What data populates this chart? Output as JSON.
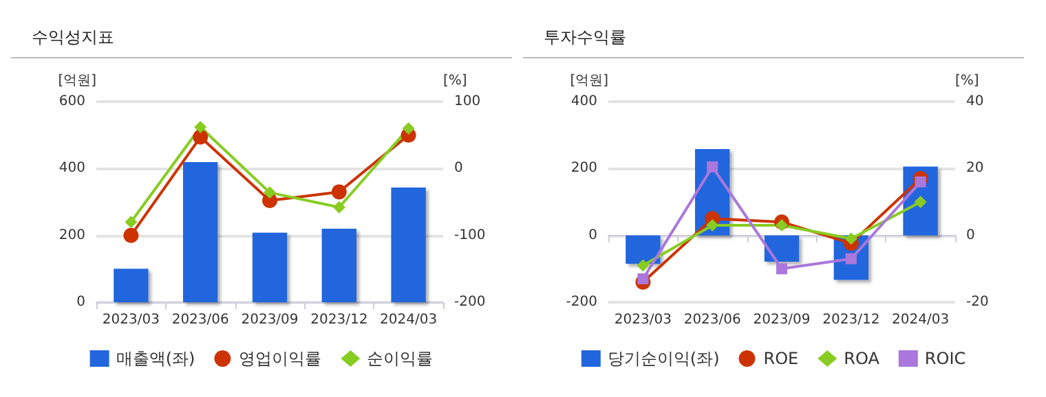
{
  "chart_data": [
    {
      "type": "bar",
      "title": "수익성지표",
      "ylabel": "[억원]",
      "y2label": "[%]",
      "categories": [
        "2023/03",
        "2023/06",
        "2023/09",
        "2023/12",
        "2024/03"
      ],
      "ylim": [
        0,
        600
      ],
      "yticks": [
        0,
        200,
        400,
        600
      ],
      "y2lim": [
        -200,
        100
      ],
      "y2ticks": [
        -200,
        -100,
        0,
        100
      ],
      "grid": "y",
      "legend": "bottom",
      "series": [
        {
          "name": "매출액(좌)",
          "color": "#2266dd",
          "values": [
            100,
            419,
            208,
            220,
            343
          ]
        },
        {
          "name": "영업이익률",
          "type": "line",
          "axis": "y2",
          "marker": "circle",
          "color": "#cc3300",
          "values": [
            -100,
            47,
            -48,
            -35,
            50
          ]
        },
        {
          "name": "순이익률",
          "type": "line",
          "axis": "y2",
          "marker": "diamond",
          "color": "#88cc22",
          "values": [
            -80,
            62,
            -36,
            -58,
            60
          ]
        }
      ]
    },
    {
      "type": "bar",
      "title": "투자수익률",
      "ylabel": "[억원]",
      "y2label": "[%]",
      "categories": [
        "2023/03",
        "2023/06",
        "2023/09",
        "2023/12",
        "2024/03"
      ],
      "ylim": [
        -200,
        400
      ],
      "yticks": [
        -200,
        0,
        200,
        400
      ],
      "y2lim": [
        -20,
        40
      ],
      "y2ticks": [
        -20,
        0,
        20,
        40
      ],
      "grid": "y",
      "legend": "bottom",
      "series": [
        {
          "name": "당기순이익(좌)",
          "color": "#2266dd",
          "values": [
            -85,
            258,
            -79,
            -133,
            206
          ]
        },
        {
          "name": "ROE",
          "type": "line",
          "axis": "y2",
          "marker": "circle",
          "color": "#cc3300",
          "values": [
            -14,
            5,
            4,
            -2.4,
            17
          ]
        },
        {
          "name": "ROA",
          "type": "line",
          "axis": "y2",
          "marker": "diamond",
          "color": "#88cc22",
          "values": [
            -9,
            3,
            3,
            -1,
            10
          ]
        },
        {
          "name": "ROIC",
          "type": "line",
          "axis": "y2",
          "marker": "square",
          "color": "#aa77dd",
          "values": [
            -13,
            20.5,
            -10,
            -7,
            16
          ]
        }
      ]
    }
  ]
}
